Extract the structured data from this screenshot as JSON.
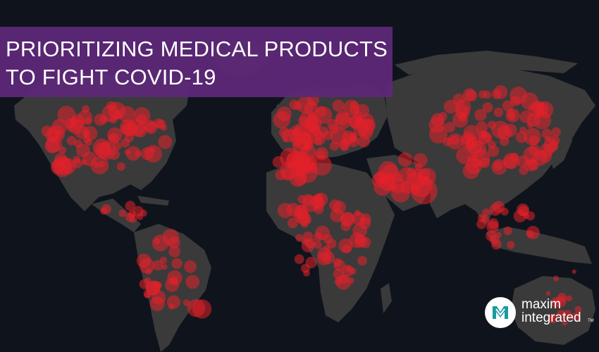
{
  "banner": {
    "line1": "PRIORITIZING MEDICAL PRODUCTS",
    "line2": "TO FIGHT COVID-19"
  },
  "logo": {
    "word1": "maxim",
    "word2": "integrated",
    "trademark": "TM",
    "icon": "maxim-integrated-logo-icon"
  },
  "colors": {
    "background": "#0f141c",
    "land": "#3a3a3a",
    "hotspot": "#e3202a",
    "banner": "#5e2878",
    "brand_teal": "#1a9aa3"
  }
}
